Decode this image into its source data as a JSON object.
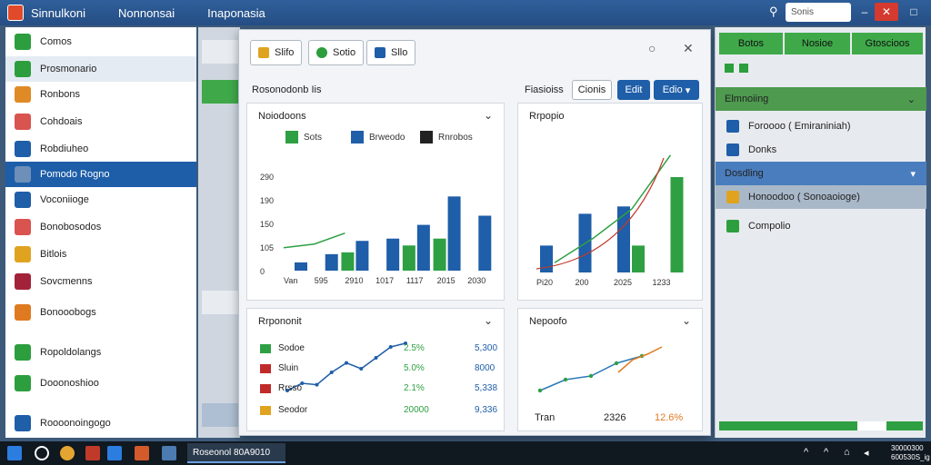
{
  "titlebar": {
    "tabs": [
      "Sinnulkoni",
      "Nonnonsai",
      "Inaponasia"
    ],
    "search_placeholder": "Sonis",
    "minimize_label": "–",
    "maximize_label": "□",
    "close_label": "✕"
  },
  "sidebar": {
    "items": [
      {
        "label": "Comos",
        "icon": "green-square-icon",
        "color": "#2d9e3e"
      },
      {
        "label": "Prosmonario",
        "icon": "chart-bars-icon",
        "color": "#2d9e3e"
      },
      {
        "label": "Ronbons",
        "icon": "colorful-globe-icon",
        "color": "#e08a25"
      },
      {
        "label": "Cohdoais",
        "icon": "document-icon",
        "color": "#d9534f"
      },
      {
        "label": "Robdiuheo",
        "icon": "table-icon",
        "color": "#1f5ea8"
      },
      {
        "label": "Pomodo Rogno",
        "icon": "folder-icon",
        "color": "#6d8fb8"
      },
      {
        "label": "Voconiioge",
        "icon": "database-icon",
        "color": "#1f5ea8"
      },
      {
        "label": "Bonobosodos",
        "icon": "layout-icon",
        "color": "#d9534f"
      },
      {
        "label": "Bitlois",
        "icon": "gift-icon",
        "color": "#e0a320"
      },
      {
        "label": "Sovcmenns",
        "icon": "shield-icon",
        "color": "#a3223a"
      },
      {
        "label": "Bonooobogs",
        "icon": "envelope-icon",
        "color": "#e07a20"
      },
      {
        "label": "Ropoldolangs",
        "icon": "refresh-icon",
        "color": "#2d9e3e"
      },
      {
        "label": "Dooonoshioo",
        "icon": "close-circle-icon",
        "color": "#2d9e3e"
      },
      {
        "label": "Roooonoingogo",
        "icon": "gear-icon",
        "color": "#1f5ea8"
      }
    ]
  },
  "window": {
    "tabs": [
      {
        "label": "Slifo",
        "color": "#e0a320"
      },
      {
        "label": "Sotio",
        "color": "#2d9e3e"
      },
      {
        "label": "Sllo",
        "color": "#1f5ea8"
      }
    ],
    "toolbar": {
      "left_label": "Rosonodonb Iis",
      "right_label": "Fiasioiss",
      "cancel_label": "Cionis",
      "edit_label": "Edit",
      "dropdown_label": "Edio"
    },
    "cards": [
      {
        "title": "Noiodoons"
      },
      {
        "title": "Rrpopio"
      },
      {
        "title": "Rrpononit"
      },
      {
        "title": "Nepoofo"
      }
    ]
  },
  "chart_data": [
    {
      "type": "bar",
      "legend": [
        "Sots",
        "Brweodo",
        "Rnrobos"
      ],
      "colors": [
        "#2ea043",
        "#1f5ea8",
        "#222222"
      ],
      "categories": [
        "Van",
        "595",
        "2910",
        "1017",
        "1117",
        "2015",
        "2030"
      ],
      "series": [
        {
          "name": "Sots",
          "values": [
            0,
            0,
            40,
            0,
            55,
            70,
            0
          ]
        },
        {
          "name": "Brweodo",
          "values": [
            18,
            36,
            65,
            70,
            100,
            162,
            120
          ]
        },
        {
          "name": "line",
          "values": [
            50,
            58,
            82,
            90,
            112,
            165,
            180
          ]
        }
      ],
      "ylim": [
        0,
        240
      ],
      "yticks": [
        "0",
        "105",
        "150",
        "190",
        "290"
      ]
    },
    {
      "type": "bar",
      "categories": [
        "Pi20",
        "200",
        "2025",
        "1233"
      ],
      "series": [
        {
          "name": "blue",
          "values": [
            55,
            120,
            135,
            0
          ]
        },
        {
          "name": "green",
          "values": [
            0,
            0,
            55,
            195
          ]
        },
        {
          "name": "line",
          "values": [
            20,
            70,
            130,
            240
          ]
        }
      ],
      "ylim": [
        0,
        260
      ]
    },
    {
      "type": "table",
      "rows": [
        {
          "label": "Sodoe",
          "pct": "2.5%",
          "value": "5,300",
          "color": "#2ea043"
        },
        {
          "label": "Sluin",
          "pct": "5.0%",
          "value": "8000",
          "color": "#c02a2a"
        },
        {
          "label": "Rrsso",
          "pct": "2.1%",
          "value": "5,338",
          "color": "#c02a2a"
        },
        {
          "label": "Seodor",
          "pct": "20000",
          "value": "9,336",
          "color": "#e0a320"
        }
      ],
      "line": [
        10,
        20,
        18,
        35,
        48,
        40,
        55,
        70,
        75
      ]
    },
    {
      "type": "line",
      "series": [
        {
          "name": "blue",
          "values": [
            10,
            22,
            26,
            40,
            48
          ]
        },
        {
          "name": "orange",
          "values": [
            30,
            44,
            50,
            58
          ]
        }
      ],
      "footer": [
        "Tran",
        "2326",
        "12.6%"
      ]
    }
  ],
  "right_panel": {
    "tabs": [
      "Botos",
      "Nosioe",
      "Gtoscioos"
    ],
    "sections": [
      {
        "label": "Elmnoiing",
        "items": [
          {
            "label": "Foroooo ( Emiraniniah)",
            "icon": "arrow-icon",
            "color": "#1f5ea8"
          },
          {
            "label": "Donks",
            "icon": "close-icon",
            "color": "#1f5ea8"
          }
        ]
      },
      {
        "label": "Dosdling",
        "items": [
          {
            "label": "Honoodoo ( Sonoaoioge)",
            "icon": "folder-icon",
            "color": "#e0a320"
          },
          {
            "label": "Compolio",
            "icon": "check-icon",
            "color": "#2d9e3e"
          }
        ]
      }
    ]
  },
  "taskbar": {
    "app_label": "Roseonol 80A9010",
    "clock_time": "30000300",
    "clock_date": "600530S_ig"
  }
}
